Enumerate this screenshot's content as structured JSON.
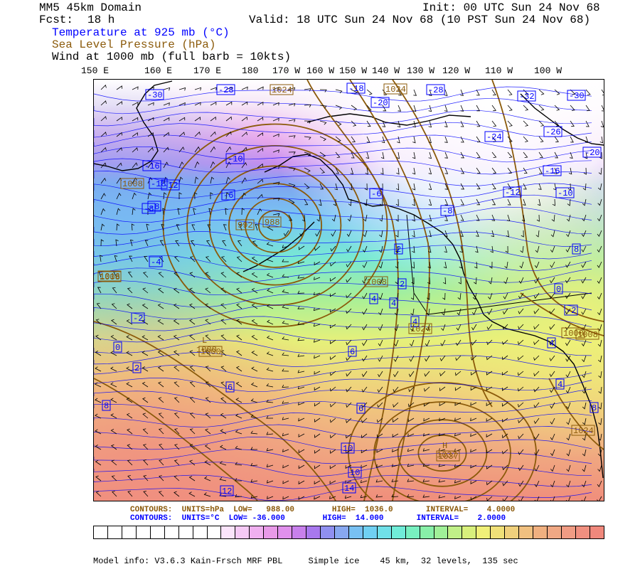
{
  "header": {
    "domain": "MM5 45km Domain",
    "fcst_label": "Fcst:",
    "fcst_value": "18 h",
    "init": "Init: 00 UTC Sun 24 Nov 68",
    "valid": "Valid: 18 UTC Sun 24 Nov 68 (10 PST Sun 24 Nov 68)",
    "legend_temperature": "Temperature at 925 mb (°C)",
    "legend_pressure": "Sea Level Pressure (hPa)",
    "legend_wind": "Wind at 1000 mb (full barb = 10kts)"
  },
  "colors": {
    "temperature": "#0000ff",
    "pressure": "#8b5a0a",
    "wind": "#000000"
  },
  "longitudes": [
    "150 E",
    "160 E",
    "170 E",
    "180",
    "170 W",
    "160 W",
    "150 W",
    "140 W",
    "130 W",
    "120 W",
    "110 W",
    "100 W"
  ],
  "map": {
    "temperature_labels": [
      "-30",
      "-28",
      "-18",
      "-20",
      "-28",
      "-32",
      "-30",
      "-26",
      "-24",
      "-20",
      "-16",
      "-18",
      "-10",
      "-16",
      "-12",
      "-6",
      "-8",
      "-6",
      "-8",
      "-12",
      "-10",
      "-4",
      "-2",
      "0",
      "2",
      "2",
      "4",
      "4",
      "4",
      "6",
      "6",
      "8",
      "8",
      "10",
      "10",
      "12",
      "14",
      "0",
      "-2",
      "4",
      "6",
      "8",
      "2",
      "4",
      "-8"
    ],
    "pressure_labels": [
      "1024",
      "1024",
      "1008",
      "992",
      "988",
      "1008",
      "1000",
      "1008",
      "1024",
      "1008",
      "1024",
      "1037",
      "1000",
      "1016"
    ],
    "low_centers": [
      {
        "symbol": "L",
        "value": "1000"
      }
    ],
    "high_centers": [
      {
        "symbol": "H",
        "value": "1037"
      }
    ],
    "field_color_stops": [
      "#ffffff",
      "#f4c8f4",
      "#e496e8",
      "#c878ea",
      "#8fa0f0",
      "#78c8f2",
      "#7ae6d8",
      "#8cf0a8",
      "#c8f084",
      "#f0f078",
      "#f0c882",
      "#f0a082",
      "#f08c7a"
    ]
  },
  "contour_info": {
    "slp_line": "CONTOURS:  UNITS=hPa  LOW=   988.00        HIGH=  1036.0       INTERVAL=    4.0000",
    "temp_line": "CONTOURS:  UNITS=°C  LOW= -36.000        HIGH=  14.000       INTERVAL=    2.0000"
  },
  "colorbar": [
    "#ffffff",
    "#ffffff",
    "#ffffff",
    "#ffffff",
    "#ffffff",
    "#ffffff",
    "#ffffff",
    "#ffffff",
    "#ffffff",
    "#fbe4fb",
    "#f6caf6",
    "#f0b0f0",
    "#e89ae8",
    "#e090ec",
    "#c880ec",
    "#a878ee",
    "#9090f0",
    "#88a8f0",
    "#78c0f2",
    "#70d0f2",
    "#70e0e8",
    "#70ecd8",
    "#78f0c0",
    "#88f0a8",
    "#a0f098",
    "#c0f088",
    "#d8f07c",
    "#f0f078",
    "#f0e078",
    "#f0d07c",
    "#f0c080",
    "#f0b080",
    "#f0a884",
    "#f09c84",
    "#f09080",
    "#f0887c"
  ],
  "footer": "Model info: V3.6.3 Kain-Frsch MRF PBL     Simple ice    45 km,  32 levels,  135 sec"
}
